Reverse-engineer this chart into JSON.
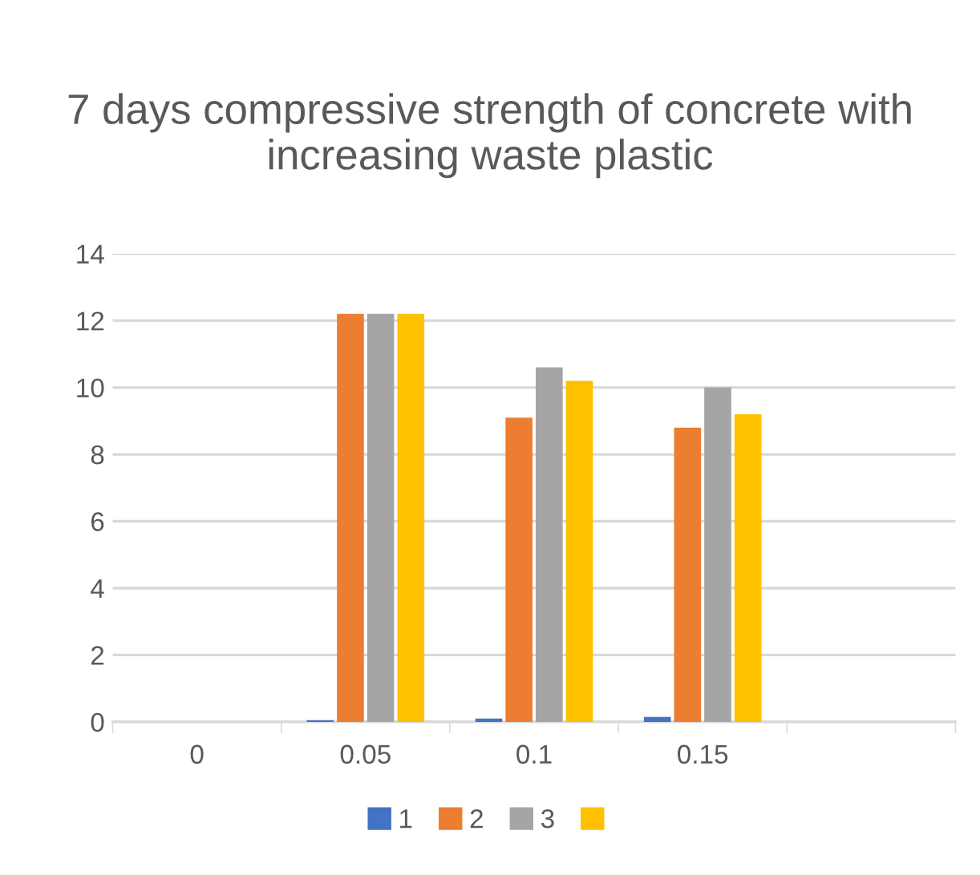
{
  "chart_data": {
    "type": "bar",
    "title": "7 days compressive strength of concrete with increasing waste plastic",
    "categories": [
      "0",
      "0.05",
      "0.1",
      "0.15",
      null
    ],
    "series": [
      {
        "name": "1",
        "color": "#4472c4",
        "values": [
          0,
          0.05,
          0.1,
          0.15,
          null
        ]
      },
      {
        "name": "2",
        "color": "#ed7d31",
        "values": [
          null,
          12.2,
          9.1,
          8.8,
          null
        ]
      },
      {
        "name": "3",
        "color": "#a5a5a5",
        "values": [
          null,
          12.2,
          10.6,
          10.0,
          null
        ]
      },
      {
        "color": "#ffc000",
        "values": [
          null,
          12.2,
          10.2,
          9.2,
          null
        ]
      }
    ],
    "ylim": [
      0,
      14
    ],
    "yticks": [
      0,
      2,
      4,
      6,
      8,
      10,
      12,
      14
    ],
    "grid": "y",
    "legend": "bottom"
  }
}
